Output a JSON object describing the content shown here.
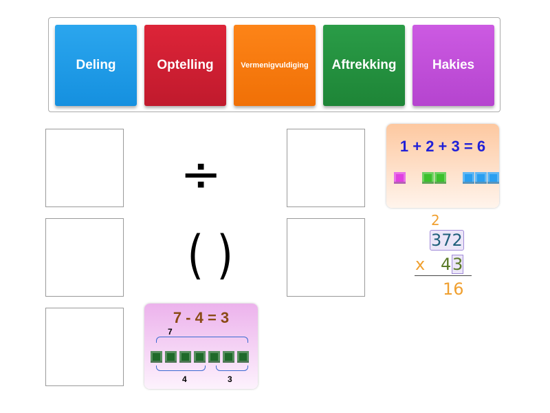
{
  "tiles": [
    {
      "label": "Deling",
      "color": "#1a9be8"
    },
    {
      "label": "Optelling",
      "color": "#d41f35"
    },
    {
      "label": "Vermenigvuldiging",
      "color": "#fb7a10"
    },
    {
      "label": "Aftrekking",
      "color": "#23913f"
    },
    {
      "label": "Hakies",
      "color": "#c04fd9"
    }
  ],
  "symbols": {
    "division": "÷",
    "brackets": "( )"
  },
  "addition_card": {
    "equation": "1 + 2 + 3 = 6"
  },
  "multiplication_card": {
    "carry": "2",
    "top": "372",
    "sign": "x",
    "bottom_a": "4",
    "bottom_b": "3",
    "result": "16"
  },
  "subtraction_card": {
    "equation": "7 - 4 = 3",
    "total": "7",
    "part_a": "4",
    "part_b": "3"
  }
}
